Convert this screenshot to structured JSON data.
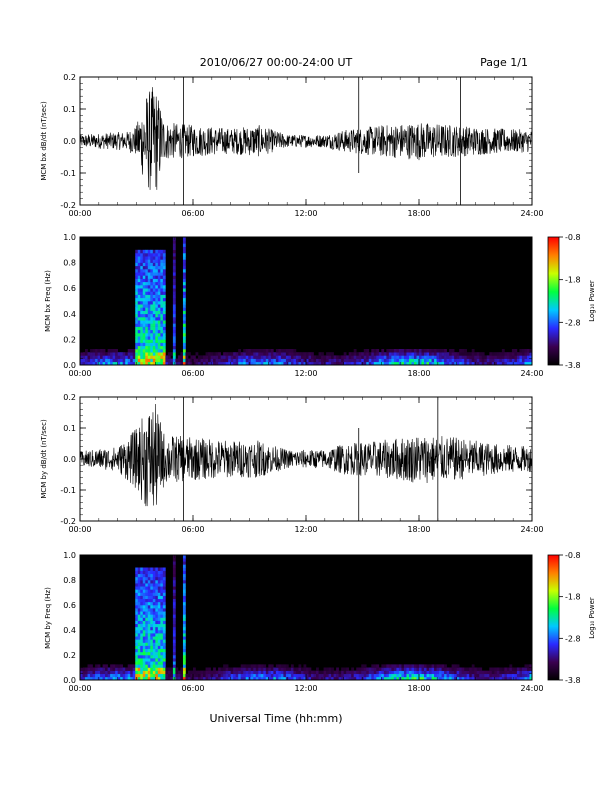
{
  "header": {
    "title": "2010/06/27  00:00-24:00 UT",
    "page": "Page 1/1"
  },
  "footer": {
    "xlabel": "Universal Time (hh:mm)"
  },
  "colorscale": {
    "stops": [
      "#000000",
      "#3a0050",
      "#2a2aff",
      "#00c8ff",
      "#00ff40",
      "#c8ff00",
      "#ff8000",
      "#ff0000"
    ]
  },
  "chart_data": [
    {
      "type": "line",
      "ylabel": "MCM bx dB/dt (nT/sec)",
      "xlim": [
        0,
        24
      ],
      "xticks": [
        "00:00",
        "06:00",
        "12:00",
        "18:00",
        "24:00"
      ],
      "ylim": [
        -0.2,
        0.2
      ],
      "yticks": [
        "0.2",
        "0.1",
        "0.0",
        "-0.1",
        "-0.2"
      ],
      "activity_envelope": [
        {
          "t": 0,
          "amp": 0.02
        },
        {
          "t": 2.5,
          "amp": 0.03
        },
        {
          "t": 3.0,
          "amp": 0.05
        },
        {
          "t": 3.5,
          "amp": 0.15
        },
        {
          "t": 4.0,
          "amp": 0.18
        },
        {
          "t": 4.5,
          "amp": 0.06
        },
        {
          "t": 6.0,
          "amp": 0.05
        },
        {
          "t": 8.0,
          "amp": 0.04
        },
        {
          "t": 9.5,
          "amp": 0.05
        },
        {
          "t": 11.0,
          "amp": 0.02
        },
        {
          "t": 13.0,
          "amp": 0.02
        },
        {
          "t": 14.0,
          "amp": 0.035
        },
        {
          "t": 16.0,
          "amp": 0.05
        },
        {
          "t": 18.0,
          "amp": 0.06
        },
        {
          "t": 20.0,
          "amp": 0.05
        },
        {
          "t": 22.0,
          "amp": 0.04
        },
        {
          "t": 24.0,
          "amp": 0.035
        }
      ],
      "spikes": [
        {
          "t": 5.5,
          "ymin": -0.2,
          "ymax": 0.2
        },
        {
          "t": 14.8,
          "ymin": -0.1,
          "ymax": 0.2
        },
        {
          "t": 20.2,
          "ymin": -0.2,
          "ymax": 0.2
        }
      ]
    },
    {
      "type": "heatmap",
      "ylabel": "MCM bx Freq (Hz)",
      "xlim": [
        0,
        24
      ],
      "xticks": [
        "00:00",
        "06:00",
        "12:00",
        "18:00",
        "24:00"
      ],
      "ylim": [
        0,
        1.0
      ],
      "yticks": [
        "1.0",
        "0.8",
        "0.6",
        "0.4",
        "0.2",
        "0.0"
      ],
      "colorbar": {
        "label": "Log₁₀ Power",
        "range": [
          -3.8,
          -0.8
        ],
        "ticks": [
          "-0.8",
          "-1.8",
          "-2.8",
          "-3.8"
        ]
      },
      "bursts": [
        {
          "t0": 3.0,
          "t1": 4.6,
          "fmax": 0.9,
          "level": 0.55
        },
        {
          "t0": 5.0,
          "t1": 5.1,
          "fmax": 1.0,
          "level": 0.35
        },
        {
          "t0": 5.5,
          "t1": 5.55,
          "fmax": 1.0,
          "level": 0.6
        }
      ]
    },
    {
      "type": "line",
      "ylabel": "MCM by dB/dt (nT/sec)",
      "xlim": [
        0,
        24
      ],
      "xticks": [
        "00:00",
        "06:00",
        "12:00",
        "18:00",
        "24:00"
      ],
      "ylim": [
        -0.2,
        0.2
      ],
      "yticks": [
        "0.2",
        "0.1",
        "0.0",
        "-0.1",
        "-0.2"
      ],
      "activity_envelope": [
        {
          "t": 0,
          "amp": 0.025
        },
        {
          "t": 2.0,
          "amp": 0.04
        },
        {
          "t": 3.0,
          "amp": 0.1
        },
        {
          "t": 3.5,
          "amp": 0.16
        },
        {
          "t": 4.0,
          "amp": 0.18
        },
        {
          "t": 4.5,
          "amp": 0.08
        },
        {
          "t": 6.0,
          "amp": 0.07
        },
        {
          "t": 8.0,
          "amp": 0.06
        },
        {
          "t": 9.5,
          "amp": 0.06
        },
        {
          "t": 11.0,
          "amp": 0.03
        },
        {
          "t": 13.0,
          "amp": 0.03
        },
        {
          "t": 14.0,
          "amp": 0.05
        },
        {
          "t": 16.0,
          "amp": 0.06
        },
        {
          "t": 18.0,
          "amp": 0.08
        },
        {
          "t": 20.0,
          "amp": 0.07
        },
        {
          "t": 22.0,
          "amp": 0.05
        },
        {
          "t": 24.0,
          "amp": 0.04
        }
      ],
      "spikes": [
        {
          "t": 5.5,
          "ymin": -0.2,
          "ymax": 0.2
        },
        {
          "t": 14.8,
          "ymin": -0.2,
          "ymax": 0.1
        },
        {
          "t": 19.0,
          "ymin": -0.2,
          "ymax": 0.2
        }
      ]
    },
    {
      "type": "heatmap",
      "ylabel": "MCM by Freq (Hz)",
      "xlim": [
        0,
        24
      ],
      "xticks": [
        "00:00",
        "06:00",
        "12:00",
        "18:00",
        "24:00"
      ],
      "ylim": [
        0,
        1.0
      ],
      "yticks": [
        "1.0",
        "0.8",
        "0.6",
        "0.4",
        "0.2",
        "0.0"
      ],
      "colorbar": {
        "label": "Log₁₀ Power",
        "range": [
          -3.8,
          -0.8
        ],
        "ticks": [
          "-0.8",
          "-1.8",
          "-2.8",
          "-3.8"
        ]
      },
      "bursts": [
        {
          "t0": 3.0,
          "t1": 4.6,
          "fmax": 0.9,
          "level": 0.55
        },
        {
          "t0": 5.0,
          "t1": 5.1,
          "fmax": 1.0,
          "level": 0.35
        },
        {
          "t0": 5.5,
          "t1": 5.55,
          "fmax": 1.0,
          "level": 0.6
        }
      ]
    }
  ]
}
